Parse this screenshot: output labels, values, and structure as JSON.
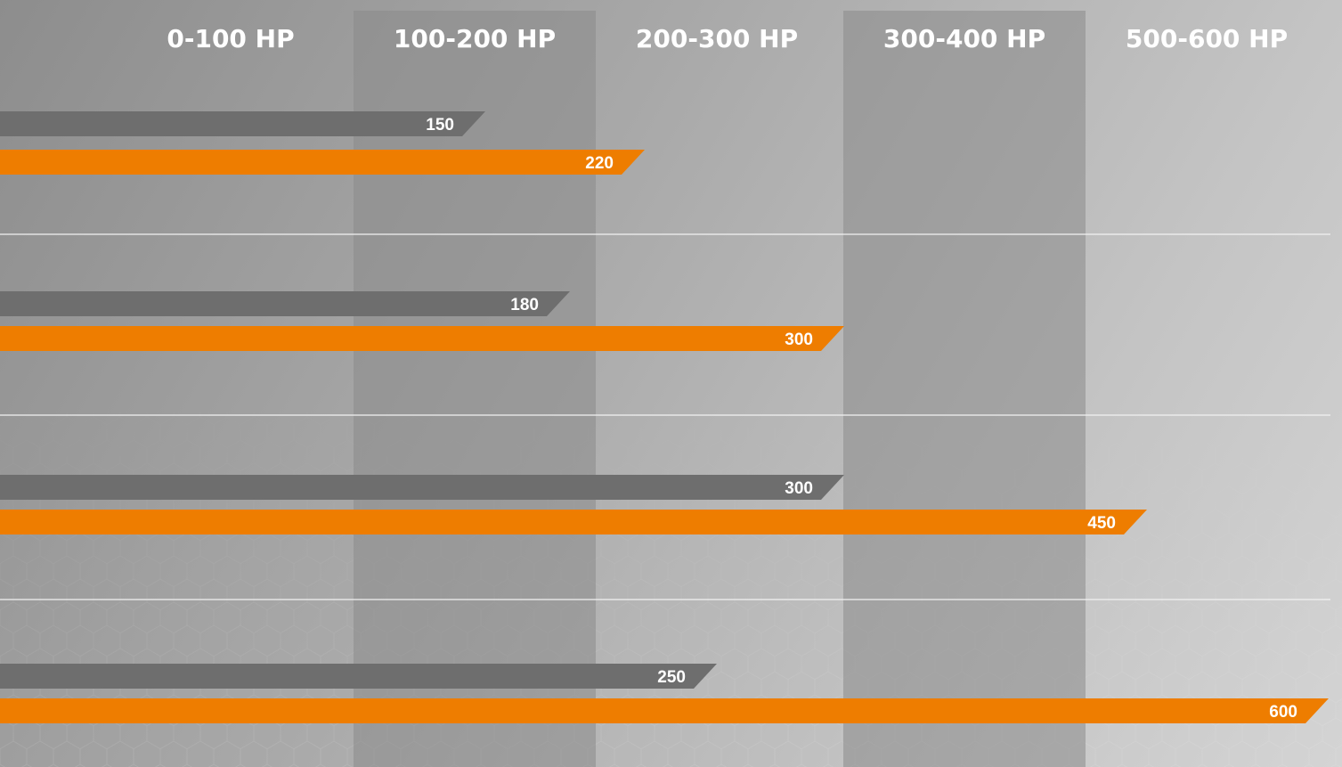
{
  "chart_data": {
    "type": "bar",
    "orientation": "horizontal",
    "column_labels": [
      "0-100 HP",
      "100-200 HP",
      "200-300 HP",
      "300-400 HP",
      "500-600 HP"
    ],
    "groups": [
      {
        "values": [
          150,
          220
        ]
      },
      {
        "values": [
          180,
          300
        ]
      },
      {
        "values": [
          300,
          450
        ]
      },
      {
        "values": [
          250,
          600
        ]
      }
    ],
    "value_labels": [
      [
        "150",
        "220"
      ],
      [
        "180",
        "300"
      ],
      [
        "300",
        "450"
      ],
      [
        "250",
        "600"
      ]
    ],
    "colors": {
      "series_gray": "#6e6e6e",
      "series_orange": "#ee7d00",
      "shaded_column": "#8a8a8a",
      "text": "#ffffff",
      "divider": "#f2f2f2"
    },
    "xlim": [
      0,
      600
    ]
  }
}
